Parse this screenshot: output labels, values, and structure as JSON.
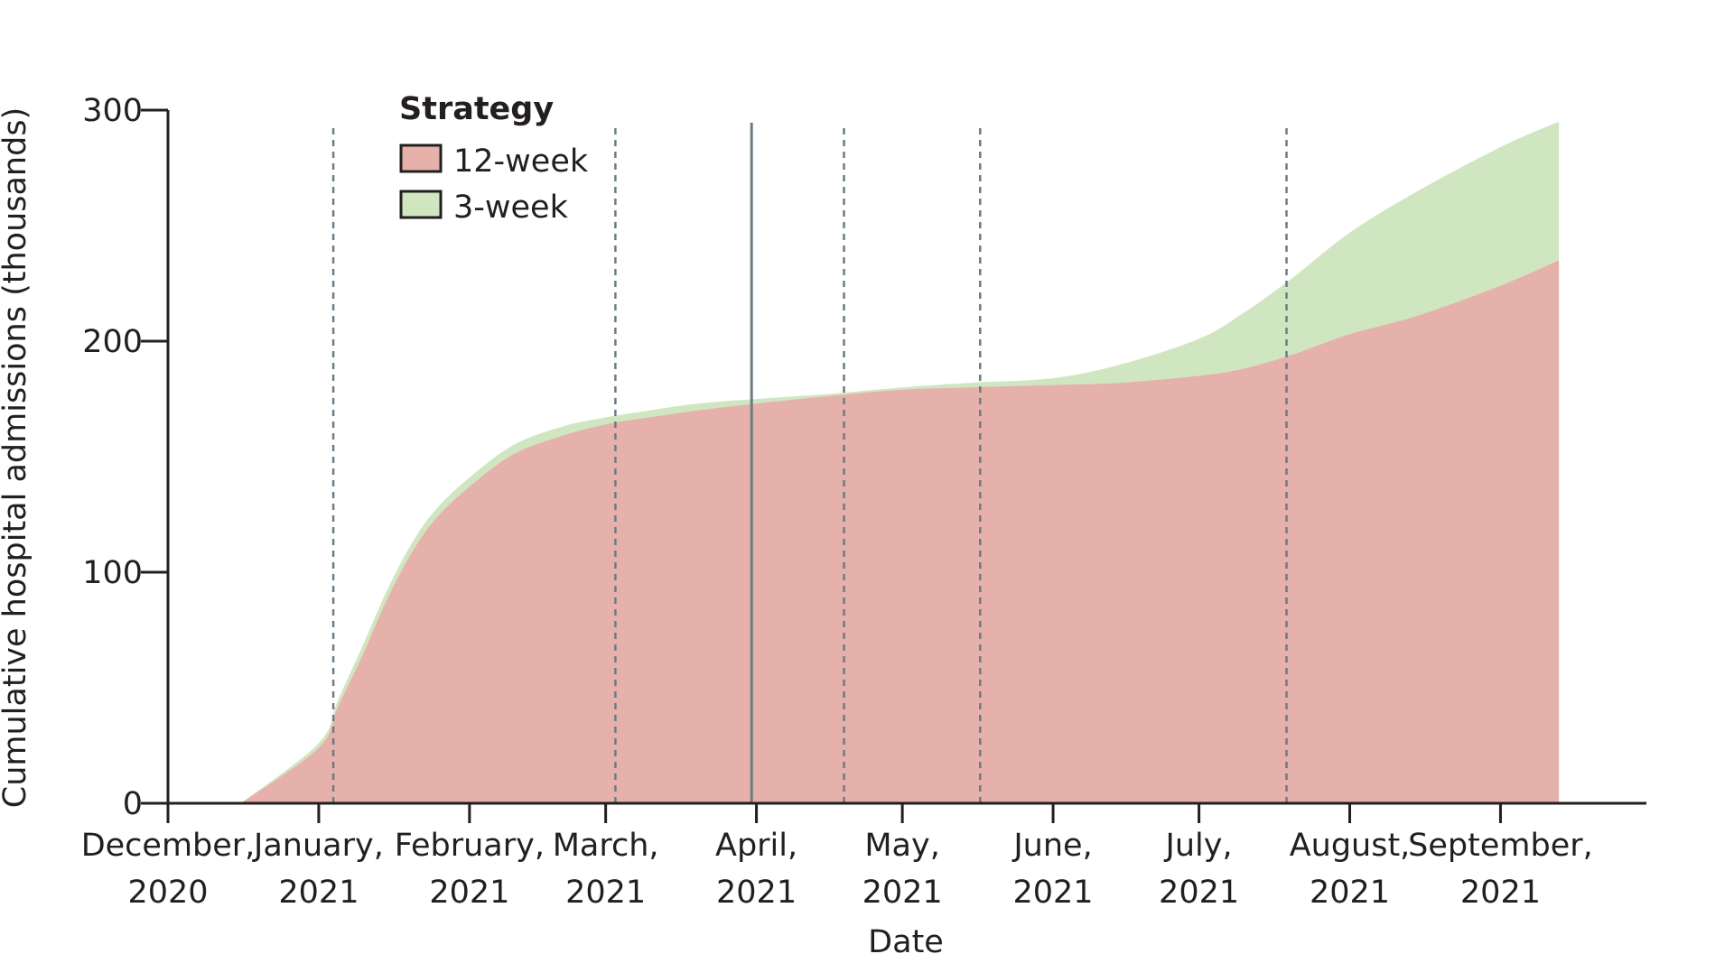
{
  "chart_data": {
    "type": "area",
    "title": "",
    "xlabel": "Date",
    "ylabel": "Cumulative hospital admissions (thousands)",
    "ylim": [
      0,
      300
    ],
    "yticks": [
      0,
      100,
      200,
      300
    ],
    "xlim": [
      "2020-12-01",
      "2021-10-01"
    ],
    "xticks": [
      {
        "date": "2020-12-01",
        "line1": "December,",
        "line2": "2020"
      },
      {
        "date": "2021-01-01",
        "line1": "January,",
        "line2": "2021"
      },
      {
        "date": "2021-02-01",
        "line1": "February,",
        "line2": "2021"
      },
      {
        "date": "2021-03-01",
        "line1": "March,",
        "line2": "2021"
      },
      {
        "date": "2021-04-01",
        "line1": "April,",
        "line2": "2021"
      },
      {
        "date": "2021-05-01",
        "line1": "May,",
        "line2": "2021"
      },
      {
        "date": "2021-06-01",
        "line1": "June,",
        "line2": "2021"
      },
      {
        "date": "2021-07-01",
        "line1": "July,",
        "line2": "2021"
      },
      {
        "date": "2021-08-01",
        "line1": "August,",
        "line2": "2021"
      },
      {
        "date": "2021-09-01",
        "line1": "September,",
        "line2": "2021"
      }
    ],
    "legend": {
      "title": "Strategy",
      "position": "top-left"
    },
    "series": [
      {
        "name": "3-week",
        "color": "#d0e6c0",
        "points": [
          [
            "2020-12-16",
            0
          ],
          [
            "2021-01-01",
            26
          ],
          [
            "2021-01-05",
            45
          ],
          [
            "2021-01-10",
            68
          ],
          [
            "2021-01-15",
            92
          ],
          [
            "2021-01-20",
            112
          ],
          [
            "2021-01-25",
            127
          ],
          [
            "2021-02-01",
            141
          ],
          [
            "2021-02-10",
            155
          ],
          [
            "2021-02-20",
            163
          ],
          [
            "2021-03-01",
            167
          ],
          [
            "2021-03-10",
            170
          ],
          [
            "2021-03-20",
            173
          ],
          [
            "2021-04-01",
            175
          ],
          [
            "2021-04-15",
            177
          ],
          [
            "2021-05-01",
            180
          ],
          [
            "2021-05-15",
            182
          ],
          [
            "2021-06-01",
            184
          ],
          [
            "2021-06-15",
            190
          ],
          [
            "2021-07-01",
            201
          ],
          [
            "2021-07-10",
            212
          ],
          [
            "2021-07-20",
            227
          ],
          [
            "2021-08-01",
            247
          ],
          [
            "2021-08-15",
            265
          ],
          [
            "2021-09-01",
            284
          ],
          [
            "2021-09-13",
            295
          ]
        ]
      },
      {
        "name": "12-week",
        "color": "#e6b0ab",
        "points": [
          [
            "2020-12-16",
            0
          ],
          [
            "2021-01-01",
            24
          ],
          [
            "2021-01-05",
            42
          ],
          [
            "2021-01-10",
            64
          ],
          [
            "2021-01-15",
            88
          ],
          [
            "2021-01-20",
            108
          ],
          [
            "2021-01-25",
            123
          ],
          [
            "2021-02-01",
            137
          ],
          [
            "2021-02-10",
            151
          ],
          [
            "2021-02-20",
            159
          ],
          [
            "2021-03-01",
            164
          ],
          [
            "2021-03-10",
            167
          ],
          [
            "2021-03-20",
            170
          ],
          [
            "2021-04-01",
            173
          ],
          [
            "2021-04-15",
            176
          ],
          [
            "2021-05-01",
            179
          ],
          [
            "2021-05-15",
            180
          ],
          [
            "2021-06-01",
            181
          ],
          [
            "2021-06-15",
            182
          ],
          [
            "2021-07-01",
            185
          ],
          [
            "2021-07-10",
            188
          ],
          [
            "2021-07-20",
            194
          ],
          [
            "2021-08-01",
            203
          ],
          [
            "2021-08-15",
            211
          ],
          [
            "2021-09-01",
            224
          ],
          [
            "2021-09-13",
            235
          ]
        ]
      }
    ],
    "vertical_lines": [
      {
        "date": "2021-01-04",
        "style": "dashed"
      },
      {
        "date": "2021-03-03",
        "style": "dashed"
      },
      {
        "date": "2021-03-31",
        "style": "solid"
      },
      {
        "date": "2021-04-19",
        "style": "dashed"
      },
      {
        "date": "2021-05-17",
        "style": "dashed"
      },
      {
        "date": "2021-07-19",
        "style": "dashed"
      }
    ],
    "line_color": "#6b7c85",
    "grid": false
  }
}
